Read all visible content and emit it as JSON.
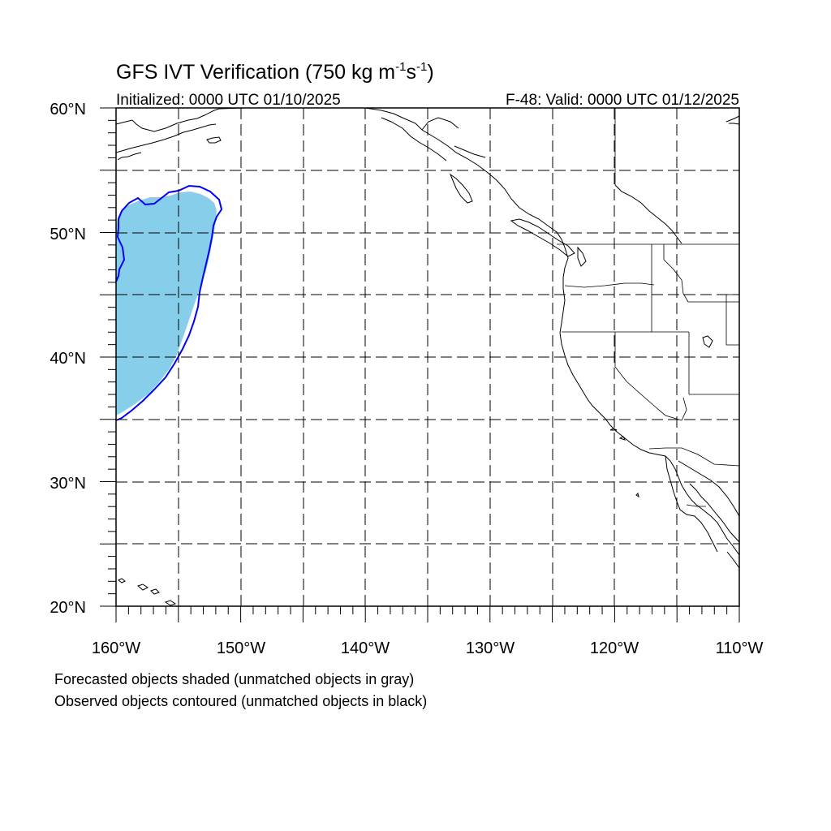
{
  "title": {
    "main": "GFS IVT Verification (750 kg m",
    "exp1": "-1",
    "mid": "s",
    "exp2": "-1",
    "close": ")"
  },
  "initialized": "Initialized: 0000 UTC 01/10/2025",
  "valid": "F-48: Valid: 0000 UTC 01/12/2025",
  "lat_labels": [
    "60°N",
    "50°N",
    "40°N",
    "30°N",
    "20°N"
  ],
  "lon_labels": [
    "160°W",
    "150°W",
    "140°W",
    "130°W",
    "120°W",
    "110°W"
  ],
  "notes": {
    "forecast": "Forecasted objects shaded (unmatched objects in gray)",
    "observed": "Observed objects contoured (unmatched objects in black)"
  },
  "map_extent": {
    "lon_min": -160,
    "lon_max": -110,
    "lat_min": 20,
    "lat_max": 60
  },
  "colors": {
    "forecast_fill": "#87ceeb",
    "observed_contour": "#0000ff",
    "grid": "#000000"
  }
}
